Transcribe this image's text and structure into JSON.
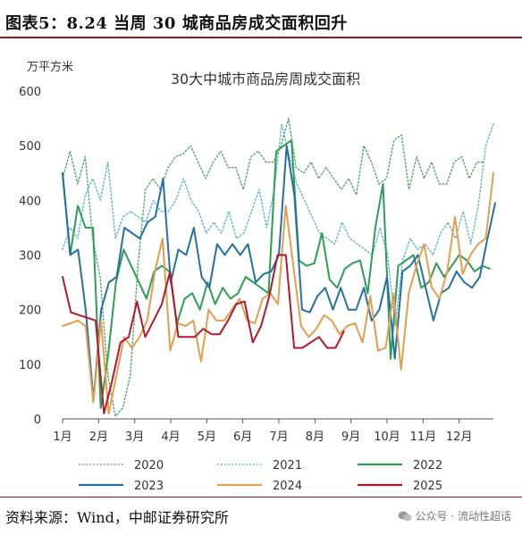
{
  "header": {
    "title": "图表5：8.24 当周 30 城商品房成交面积回升"
  },
  "footer": {
    "source": "资料来源：Wind，中邮证券研究所",
    "watermark": "公众号 · 流动性超话",
    "watermark_icon": "wechat-icon"
  },
  "chart_data": {
    "type": "line",
    "title": "30大中城市商品房周成交面积",
    "ylabel": "万平方米",
    "xlabel": "",
    "ylim": [
      0,
      600
    ],
    "yticks": [
      0,
      100,
      200,
      300,
      400,
      500,
      600
    ],
    "x_domain": [
      1,
      12.95
    ],
    "months": [
      {
        "label": "1月",
        "x": 1
      },
      {
        "label": "2月",
        "x": 2
      },
      {
        "label": "3月",
        "x": 3
      },
      {
        "label": "4月",
        "x": 4
      },
      {
        "label": "5月",
        "x": 5
      },
      {
        "label": "6月",
        "x": 6
      },
      {
        "label": "7月",
        "x": 7
      },
      {
        "label": "8月",
        "x": 8
      },
      {
        "label": "9月",
        "x": 9
      },
      {
        "label": "10月",
        "x": 10
      },
      {
        "label": "11月",
        "x": 11
      },
      {
        "label": "12月",
        "x": 12
      }
    ],
    "legend_position": "bottom",
    "series": [
      {
        "name": "2020",
        "color": "#52a36e",
        "dash": "dotted",
        "x_start": 1,
        "x_end": 12.7,
        "values": [
          440,
          490,
          430,
          480,
          330,
          260,
          80,
          5,
          20,
          80,
          280,
          420,
          440,
          420,
          460,
          480,
          485,
          500,
          470,
          440,
          470,
          490,
          460,
          460,
          420,
          480,
          490,
          470,
          470,
          500,
          550,
          460,
          450,
          470,
          440,
          460,
          440,
          420,
          440,
          410,
          500,
          470,
          430,
          440,
          510,
          520,
          420,
          480,
          440,
          470,
          430,
          430,
          470,
          480,
          440,
          470,
          470
        ]
      },
      {
        "name": "2021",
        "color": "#5bb4cc",
        "dash": "dotted",
        "x_start": 1,
        "x_end": 12.95,
        "values": [
          310,
          350,
          330,
          410,
          440,
          400,
          470,
          330,
          370,
          380,
          370,
          360,
          400,
          380,
          380,
          400,
          440,
          400,
          380,
          340,
          360,
          340,
          380,
          330,
          340,
          380,
          420,
          350,
          420,
          540,
          480,
          430,
          400,
          370,
          340,
          330,
          320,
          360,
          330,
          320,
          310,
          300,
          350,
          300,
          170,
          290,
          330,
          310,
          320,
          300,
          340,
          360,
          330,
          380,
          320,
          390,
          500,
          540
        ]
      },
      {
        "name": "2022",
        "color": "#2e9e55",
        "dash": "solid",
        "x_start": 1,
        "x_end": 12.85,
        "values": [
          450,
          300,
          390,
          350,
          350,
          20,
          120,
          250,
          310,
          280,
          250,
          220,
          270,
          280,
          270,
          175,
          220,
          230,
          200,
          250,
          210,
          240,
          220,
          230,
          260,
          250,
          240,
          230,
          490,
          500,
          510,
          290,
          280,
          285,
          340,
          255,
          240,
          275,
          285,
          290,
          230,
          350,
          430,
          110,
          280,
          290,
          300,
          240,
          250,
          285,
          260,
          280,
          300,
          290,
          270,
          280,
          275
        ]
      },
      {
        "name": "2023",
        "color": "#2570a3",
        "dash": "solid",
        "x_start": 1,
        "x_end": 13,
        "values": [
          450,
          300,
          310,
          200,
          35,
          200,
          250,
          260,
          350,
          340,
          330,
          360,
          370,
          440,
          250,
          310,
          300,
          350,
          260,
          240,
          320,
          300,
          320,
          300,
          320,
          250,
          265,
          270,
          300,
          500,
          410,
          200,
          195,
          225,
          240,
          200,
          240,
          200,
          200,
          240,
          180,
          200,
          260,
          110,
          270,
          280,
          300,
          240,
          180,
          230,
          240,
          270,
          250,
          240,
          260,
          330,
          395
        ]
      },
      {
        "name": "2024",
        "color": "#e39e4f",
        "dash": "solid",
        "x_start": 1,
        "x_end": 12.95,
        "values": [
          170,
          175,
          180,
          170,
          30,
          180,
          10,
          80,
          150,
          130,
          150,
          180,
          270,
          330,
          125,
          175,
          170,
          180,
          105,
          200,
          180,
          180,
          200,
          220,
          180,
          175,
          220,
          230,
          210,
          390,
          280,
          170,
          150,
          165,
          190,
          180,
          155,
          170,
          175,
          140,
          225,
          125,
          130,
          230,
          90,
          230,
          280,
          320,
          240,
          220,
          270,
          370,
          265,
          300,
          320,
          330,
          450
        ]
      },
      {
        "name": "2025",
        "color": "#b3192b",
        "dash": "solid",
        "x_start": 1,
        "x_end": 8.8,
        "values": [
          260,
          195,
          190,
          185,
          180,
          10,
          70,
          140,
          150,
          215,
          150,
          180,
          210,
          270,
          150,
          150,
          150,
          165,
          155,
          155,
          180,
          210,
          215,
          140,
          170,
          225,
          300,
          300,
          130,
          130,
          140,
          150,
          130,
          130,
          160
        ]
      }
    ]
  }
}
